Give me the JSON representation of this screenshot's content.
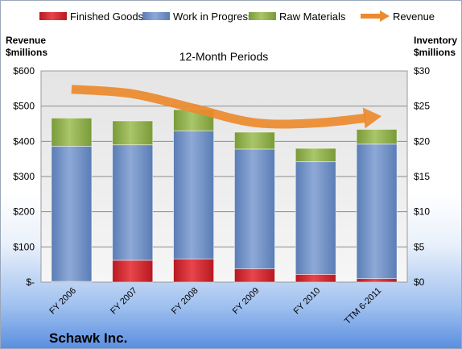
{
  "chart_data": {
    "type": "bar",
    "stacked": true,
    "subtitle": "12-Month Periods",
    "company": "Schawk Inc.",
    "categories": [
      "FY 2006",
      "FY 2007",
      "FY 2008",
      "FY 2009",
      "FY 2010",
      "TTM 6-2011"
    ],
    "ylabel_left": "Revenue\n$millions",
    "ylabel_right": "Inventory\n$millions",
    "left_axis": {
      "min": 0,
      "max": 600,
      "ticks": [
        "$-",
        "$100",
        "$200",
        "$300",
        "$400",
        "$500",
        "$600"
      ]
    },
    "right_axis": {
      "min": 0,
      "max": 30,
      "ticks": [
        "$0",
        "$5",
        "$10",
        "$15",
        "$20",
        "$25",
        "$30"
      ]
    },
    "grid": true,
    "legend_position": "top",
    "series": [
      {
        "name": "Finished Goods",
        "color": "#d9232b",
        "axis": "right",
        "values": [
          0.1,
          3.1,
          3.3,
          1.9,
          1.1,
          0.5
        ]
      },
      {
        "name": "Work in Progress",
        "color": "#6d8fc4",
        "axis": "right",
        "values": [
          19.2,
          16.4,
          18.2,
          17.0,
          16.0,
          19.1
        ]
      },
      {
        "name": "Raw Materials",
        "color": "#8fb04a",
        "axis": "right",
        "values": [
          4.0,
          3.4,
          3.0,
          2.4,
          1.9,
          2.1
        ]
      },
      {
        "name": "Revenue",
        "color": "#ec8a2e",
        "type": "line",
        "axis": "left",
        "values": [
          548,
          535,
          494,
          453,
          452,
          470
        ]
      }
    ]
  }
}
